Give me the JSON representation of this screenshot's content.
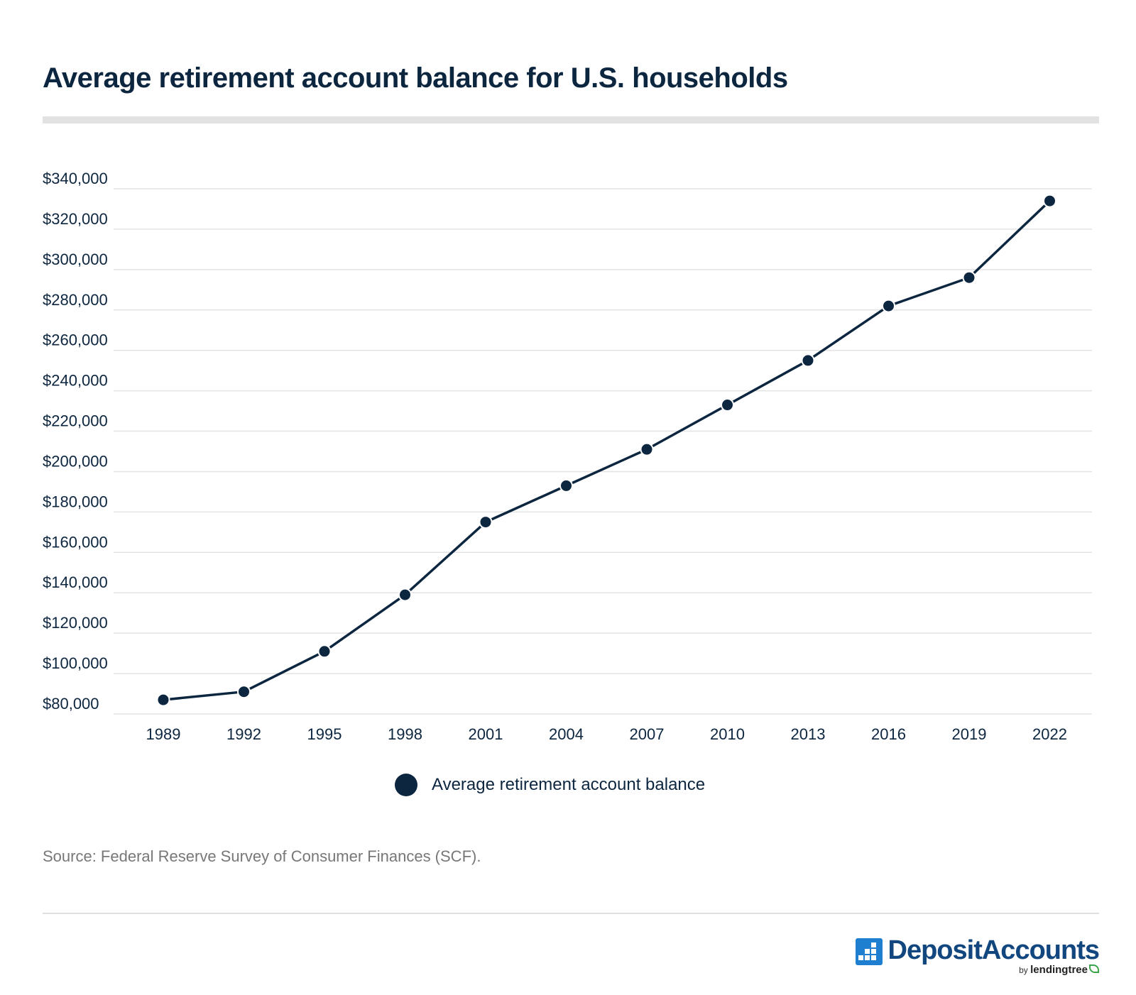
{
  "title": "Average retirement account balance for U.S. households",
  "source": "Source: Federal Reserve Survey of Consumer Finances (SCF).",
  "brand": {
    "name": "DepositAccounts",
    "by": "by",
    "partner": "lendingtree"
  },
  "colors": {
    "series": "#0d2640",
    "gridline": "#e3e3e3",
    "brand_blue": "#1e7fd1"
  },
  "chart_data": {
    "type": "line",
    "x": [
      "1989",
      "1992",
      "1995",
      "1998",
      "2001",
      "2004",
      "2007",
      "2010",
      "2013",
      "2016",
      "2019",
      "2022"
    ],
    "series": [
      {
        "name": "Average retirement account balance",
        "values": [
          87000,
          91000,
          111000,
          139000,
          175000,
          193000,
          211000,
          233000,
          255000,
          282000,
          296000,
          334000
        ]
      }
    ],
    "ylim": [
      80000,
      340000
    ],
    "yticks": [
      80000,
      100000,
      120000,
      140000,
      160000,
      180000,
      200000,
      220000,
      240000,
      260000,
      280000,
      300000,
      320000,
      340000
    ],
    "ytick_labels": [
      "$80,000",
      "$100,000",
      "$120,000",
      "$140,000",
      "$160,000",
      "$180,000",
      "$200,000",
      "$220,000",
      "$240,000",
      "$260,000",
      "$280,000",
      "$300,000",
      "$320,000",
      "$340,000"
    ],
    "grid": "horizontal",
    "legend": "bottom-center",
    "markers": "circle"
  }
}
